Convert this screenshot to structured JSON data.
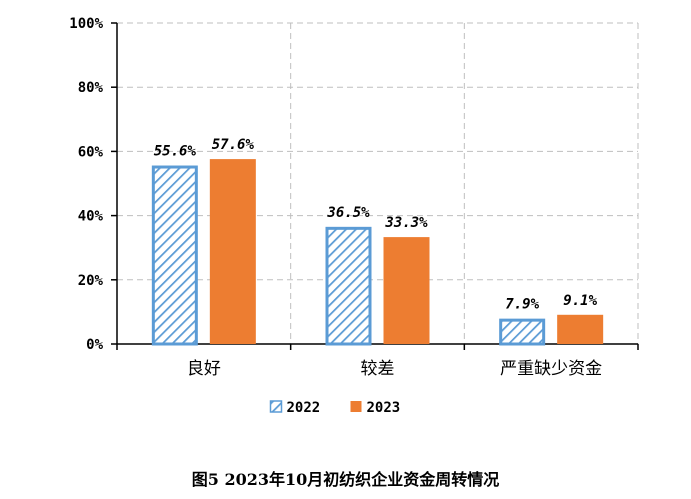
{
  "caption": "图5   2023年10月初纺织企业资金周转情况",
  "chart_data": {
    "type": "bar",
    "categories": [
      "良好",
      "较差",
      "严重缺少资金"
    ],
    "series": [
      {
        "name": "2022",
        "values": [
          55.6,
          36.5,
          7.9
        ],
        "labels": [
          "55.6%",
          "36.5%",
          "7.9%"
        ],
        "color": "#5B9BD5",
        "pattern": "diagonal-hatch"
      },
      {
        "name": "2023",
        "values": [
          57.6,
          33.3,
          9.1
        ],
        "labels": [
          "57.6%",
          "33.3%",
          "9.1%"
        ],
        "color": "#ED7D31",
        "pattern": "solid"
      }
    ],
    "ylim": [
      0,
      100
    ],
    "yticks": [
      "0%",
      "20%",
      "40%",
      "60%",
      "80%",
      "100%"
    ],
    "ytick_values": [
      0,
      20,
      40,
      60,
      80,
      100
    ],
    "grid": true,
    "legend_position": "bottom"
  }
}
